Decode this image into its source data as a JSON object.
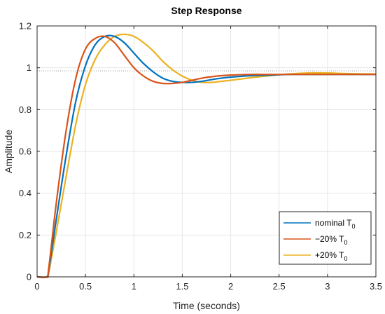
{
  "chart_data": {
    "type": "line",
    "title": "Step Response",
    "xlabel": "Time (seconds)",
    "ylabel": "Amplitude",
    "xlim": [
      0,
      3.5
    ],
    "ylim": [
      0,
      1.2
    ],
    "xticks": [
      "0",
      "0.5",
      "1",
      "1.5",
      "2",
      "2.5",
      "3",
      "3.5"
    ],
    "yticks": [
      "0",
      "0.2",
      "0.4",
      "0.6",
      "0.8",
      "1",
      "1.2"
    ],
    "grid": true,
    "legend_position": "bottom-right",
    "reference_line": {
      "y": 0.985,
      "style": "dotted"
    },
    "series": [
      {
        "name": "nominal T",
        "subscript": "0",
        "color": "#0072BD",
        "x": [
          0,
          0.1,
          0.12,
          0.2,
          0.3,
          0.4,
          0.5,
          0.6,
          0.7,
          0.8,
          0.9,
          1.0,
          1.1,
          1.2,
          1.3,
          1.4,
          1.5,
          1.6,
          1.7,
          1.8,
          1.9,
          2.0,
          2.2,
          2.4,
          2.6,
          2.8,
          3.0,
          3.2,
          3.5
        ],
        "y": [
          0,
          0,
          0.03,
          0.28,
          0.58,
          0.84,
          1.01,
          1.11,
          1.15,
          1.15,
          1.12,
          1.07,
          1.02,
          0.98,
          0.95,
          0.935,
          0.93,
          0.93,
          0.935,
          0.943,
          0.95,
          0.955,
          0.962,
          0.965,
          0.968,
          0.968,
          0.968,
          0.968,
          0.968
        ]
      },
      {
        "name": "−20% T",
        "subscript": "0",
        "color": "#D95319",
        "x": [
          0,
          0.1,
          0.12,
          0.2,
          0.3,
          0.4,
          0.5,
          0.6,
          0.7,
          0.8,
          0.9,
          1.0,
          1.1,
          1.2,
          1.3,
          1.4,
          1.5,
          1.6,
          1.7,
          1.8,
          1.9,
          2.0,
          2.2,
          2.4,
          2.6,
          2.8,
          3.0,
          3.2,
          3.5
        ],
        "y": [
          0,
          0,
          0.04,
          0.36,
          0.7,
          0.95,
          1.09,
          1.14,
          1.15,
          1.12,
          1.06,
          1.0,
          0.96,
          0.935,
          0.925,
          0.925,
          0.93,
          0.94,
          0.95,
          0.957,
          0.962,
          0.965,
          0.968,
          0.968,
          0.968,
          0.968,
          0.968,
          0.968,
          0.968
        ]
      },
      {
        "name": "+20% T",
        "subscript": "0",
        "color": "#EDB120",
        "x": [
          0,
          0.1,
          0.12,
          0.2,
          0.3,
          0.4,
          0.5,
          0.6,
          0.7,
          0.8,
          0.9,
          1.0,
          1.1,
          1.2,
          1.3,
          1.4,
          1.5,
          1.6,
          1.7,
          1.8,
          1.9,
          2.0,
          2.2,
          2.4,
          2.6,
          2.8,
          3.0,
          3.2,
          3.5
        ],
        "y": [
          0,
          0,
          0.02,
          0.22,
          0.48,
          0.73,
          0.92,
          1.04,
          1.11,
          1.15,
          1.16,
          1.15,
          1.12,
          1.08,
          1.03,
          0.99,
          0.96,
          0.94,
          0.93,
          0.93,
          0.935,
          0.94,
          0.952,
          0.962,
          0.97,
          0.975,
          0.975,
          0.972,
          0.97
        ]
      }
    ]
  }
}
